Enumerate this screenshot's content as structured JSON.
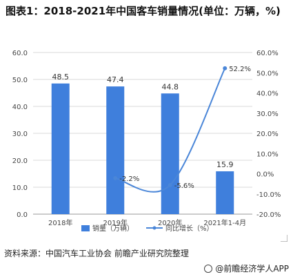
{
  "title": "图表1：2018-2021年中国客车销量情况(单位：万辆，%)",
  "source": "资料来源：中国汽车工业协会 前瞻产业研究院整理",
  "brand": "@前瞻经济学人APP",
  "colors": {
    "bar": "#3f7fdc",
    "line": "#4a86d8",
    "axis": "#999999",
    "grid": "#d9d9d9"
  },
  "chart_data": {
    "type": "bar",
    "categories": [
      "2018年",
      "2019年",
      "2020年",
      "2021年1-4月"
    ],
    "series": [
      {
        "name": "销量（万辆）",
        "type": "bar",
        "axis": "left",
        "values": [
          48.5,
          47.4,
          44.8,
          15.9
        ],
        "labels": [
          "48.5",
          "47.4",
          "44.8",
          "15.9"
        ]
      },
      {
        "name": "同比增长（%）",
        "type": "line",
        "axis": "right",
        "values": [
          null,
          -2.2,
          -5.6,
          52.2
        ],
        "labels": [
          "",
          "-2.2%",
          "-5.6%",
          "52.2%"
        ]
      }
    ],
    "y_left": {
      "min": 0,
      "max": 60,
      "ticks": [
        "0.0",
        "10.0",
        "20.0",
        "30.0",
        "40.0",
        "50.0",
        "60.0"
      ]
    },
    "y_right": {
      "min": -20,
      "max": 60,
      "ticks": [
        "-20.0%",
        "-10.0%",
        "0.0%",
        "10.0%",
        "20.0%",
        "30.0%",
        "40.0%",
        "50.0%",
        "60.0%"
      ]
    },
    "legend_position": "bottom",
    "grid": true
  }
}
